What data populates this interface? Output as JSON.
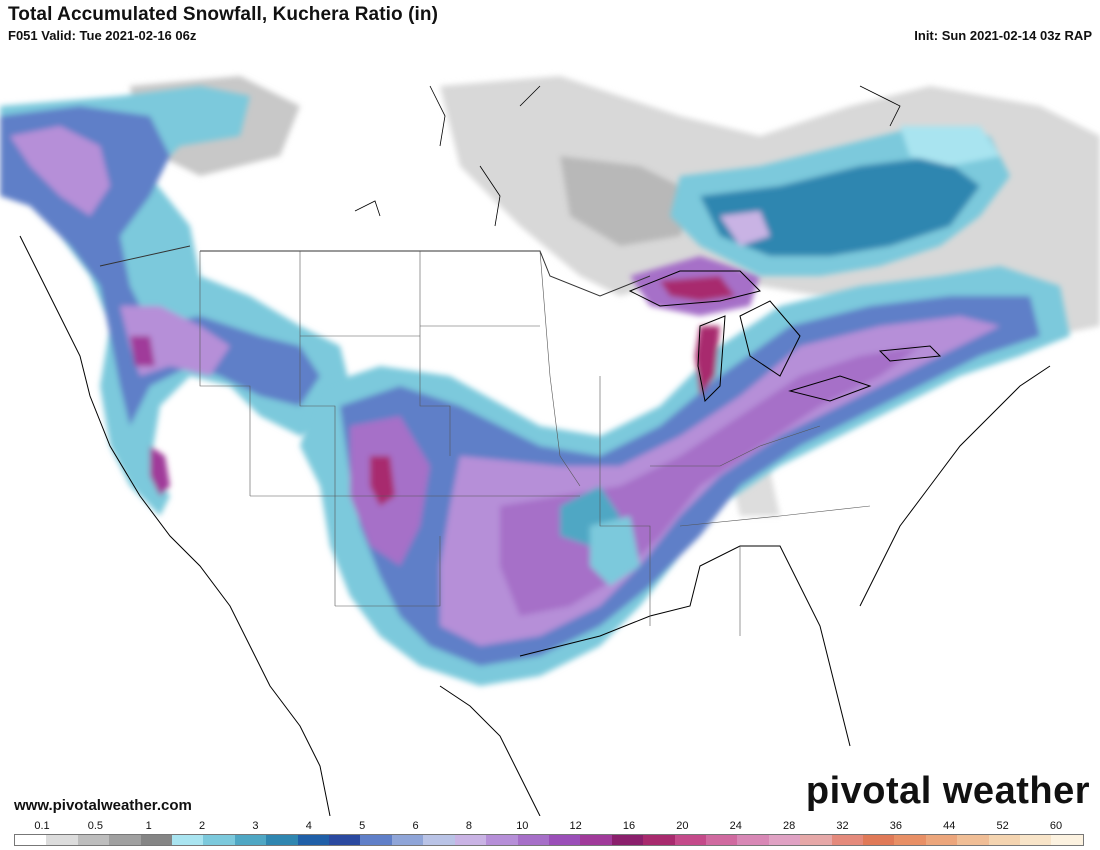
{
  "header": {
    "title": "Total Accumulated Snowfall, Kuchera Ratio (in)",
    "valid": "F051 Valid: Tue 2021-02-16 06z",
    "init": "Init: Sun 2021-02-14 03z RAP"
  },
  "footer": {
    "website": "www.pivotalweather.com",
    "logo": "pivotal weather"
  },
  "legend": {
    "labels": [
      "0.1",
      "0.5",
      "1",
      "2",
      "3",
      "4",
      "5",
      "6",
      "8",
      "10",
      "12",
      "16",
      "20",
      "24",
      "28",
      "32",
      "36",
      "44",
      "52",
      "60"
    ],
    "colors": [
      "#ffffff",
      "#dcdcdc",
      "#bdbdbd",
      "#a0a0a0",
      "#858585",
      "#a9e4f0",
      "#7cc9dc",
      "#4fa7c4",
      "#2f86b0",
      "#1f5fa8",
      "#2a49a0",
      "#5f7fc8",
      "#8fa5d8",
      "#b9c3e6",
      "#c9b3e4",
      "#b68fd8",
      "#a66fc8",
      "#9a4fb8",
      "#a03a9a",
      "#8a1f6c",
      "#a82a6e",
      "#c44a8a",
      "#d06aa0",
      "#d888b6",
      "#e0a2c4",
      "#e6a8a8",
      "#e48a7c",
      "#e07a58",
      "#e89066",
      "#eca67c",
      "#f0be96",
      "#f4d4b0",
      "#f8e4c8",
      "#fcf2e0"
    ]
  }
}
